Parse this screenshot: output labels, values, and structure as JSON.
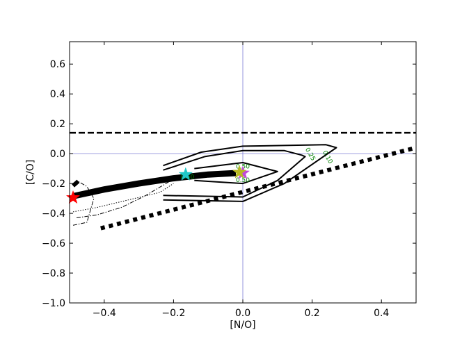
{
  "chart_data": {
    "type": "line",
    "title": "",
    "xlabel": "[N/O]",
    "ylabel": "[C/O]",
    "xlim": [
      -0.5,
      0.5
    ],
    "ylim": [
      -1.0,
      0.75
    ],
    "xticks": [
      -0.4,
      -0.2,
      0.0,
      0.2,
      0.4
    ],
    "xtick_labels": [
      "−0.4",
      "−0.2",
      "0.0",
      "0.2",
      "0.4"
    ],
    "yticks": [
      -1.0,
      -0.8,
      -0.6,
      -0.4,
      -0.2,
      0.0,
      0.2,
      0.4,
      0.6
    ],
    "ytick_labels": [
      "−1.0",
      "−0.8",
      "−0.6",
      "−0.4",
      "−0.2",
      "0.0",
      "0.2",
      "0.4",
      "0.6"
    ],
    "grid": false,
    "reference_lines": {
      "x": 0.0,
      "y": 0.0,
      "color": "#7b7bd6"
    },
    "dashed_line": {
      "y": 0.14,
      "color": "#000000"
    },
    "dotted_line": {
      "x": [
        -0.41,
        0.5
      ],
      "y": [
        -0.5,
        0.04
      ],
      "color": "#000000"
    },
    "contours": [
      {
        "level": "0.10",
        "points": [
          [
            -0.23,
            -0.31
          ],
          [
            0.0,
            -0.32
          ],
          [
            0.12,
            -0.2
          ],
          [
            0.27,
            0.04
          ],
          [
            0.24,
            0.06
          ],
          [
            0.0,
            0.05
          ],
          [
            -0.12,
            0.01
          ],
          [
            -0.23,
            -0.08
          ]
        ]
      },
      {
        "level": "0.25",
        "points": [
          [
            -0.23,
            -0.28
          ],
          [
            0.0,
            -0.29
          ],
          [
            0.1,
            -0.18
          ],
          [
            0.18,
            -0.02
          ],
          [
            0.17,
            -0.01
          ],
          [
            0.12,
            0.02
          ],
          [
            0.0,
            0.02
          ],
          [
            -0.11,
            -0.02
          ],
          [
            -0.23,
            -0.11
          ]
        ]
      },
      {
        "level": "0.50",
        "points": [
          [
            -0.14,
            -0.1
          ],
          [
            0.0,
            -0.06
          ],
          [
            0.1,
            -0.12
          ],
          [
            0.0,
            -0.2
          ],
          [
            -0.14,
            -0.18
          ]
        ]
      }
    ],
    "contour_labels": [
      {
        "text": "0.10",
        "x": 0.24,
        "y": -0.03
      },
      {
        "text": "0.25",
        "x": 0.19,
        "y": -0.01
      },
      {
        "text": "0.50",
        "x": 0.0,
        "y": -0.1
      },
      {
        "text": "0.50",
        "x": 0.0,
        "y": -0.19
      },
      {
        "text": "0.50",
        "x": -0.16,
        "y": -0.17
      }
    ],
    "thick_track": {
      "x": [
        -0.49,
        -0.4,
        -0.3,
        -0.2,
        -0.1,
        -0.02
      ],
      "y": [
        -0.285,
        -0.24,
        -0.2,
        -0.165,
        -0.14,
        -0.13
      ]
    },
    "track_curves": [
      {
        "style": "dotted",
        "x": [
          -0.49,
          -0.42,
          -0.33,
          -0.24,
          -0.2
        ],
        "y": [
          -0.39,
          -0.36,
          -0.31,
          -0.26,
          -0.2
        ]
      },
      {
        "style": "dashdot",
        "x": [
          -0.48,
          -0.42,
          -0.35,
          -0.28,
          -0.2
        ],
        "y": [
          -0.43,
          -0.41,
          -0.36,
          -0.28,
          -0.17
        ]
      },
      {
        "style": "dashdot",
        "x": [
          -0.49,
          -0.45,
          -0.43,
          -0.45,
          -0.48
        ],
        "y": [
          -0.48,
          -0.46,
          -0.3,
          -0.22,
          -0.18
        ]
      }
    ],
    "markers": [
      {
        "x": -0.49,
        "y": -0.295,
        "color": "#ff0000"
      },
      {
        "x": -0.165,
        "y": -0.14,
        "color": "#20c8c8"
      },
      {
        "x": 0.0,
        "y": -0.13,
        "color": "#c04ad8"
      },
      {
        "x": -0.01,
        "y": -0.125,
        "color": "#b8b820"
      }
    ]
  }
}
